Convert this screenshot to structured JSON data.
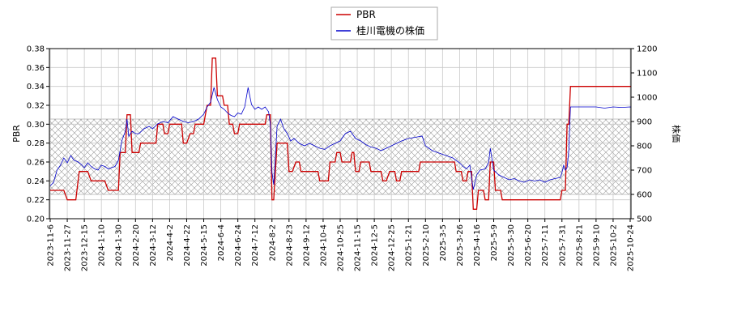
{
  "chart_data": {
    "type": "line",
    "title": "",
    "legend": {
      "placement": "top-center",
      "entries": [
        {
          "name": "PBR",
          "color": "#cc0000"
        },
        {
          "name": "桂川電機の株価",
          "color": "#0000cc"
        }
      ]
    },
    "xlabel": "",
    "x_ticks": [
      "2023-11-6",
      "2023-11-27",
      "2023-12-15",
      "2024-1-10",
      "2024-1-30",
      "2024-2-20",
      "2024-3-12",
      "2024-4-2",
      "2024-4-22",
      "2024-5-15",
      "2024-6-4",
      "2024-6-24",
      "2024-7-12",
      "2024-8-2",
      "2024-8-23",
      "2024-9-12",
      "2024-10-4",
      "2024-10-25",
      "2024-11-15",
      "2024-12-5",
      "2024-12-25",
      "2025-1-21",
      "2025-2-10",
      "2025-3-5",
      "2025-3-26",
      "2025-4-16",
      "2025-5-9",
      "2025-5-30",
      "2025-6-20",
      "2025-7-11",
      "2025-7-31",
      "2025-8-21",
      "2025-9-10",
      "2025-10-2",
      "2025-10-24"
    ],
    "y_left": {
      "label": "PBR",
      "lim": [
        0.2,
        0.38
      ],
      "ticks": [
        "0.20",
        "0.22",
        "0.24",
        "0.26",
        "0.28",
        "0.30",
        "0.32",
        "0.34",
        "0.36",
        "0.38"
      ]
    },
    "y_right": {
      "label": "株価",
      "lim": [
        500,
        1200
      ],
      "ticks": [
        "500",
        "600",
        "700",
        "800",
        "900",
        "1000",
        "1100",
        "1200"
      ]
    },
    "hatch_band": {
      "axis": "right",
      "from": 600,
      "to": 910
    },
    "grid": true,
    "series": [
      {
        "name": "PBR",
        "axis": "left",
        "color": "#cc0000",
        "points": [
          [
            0,
            0.23
          ],
          [
            0.8,
            0.23
          ],
          [
            1,
            0.22
          ],
          [
            1.5,
            0.22
          ],
          [
            1.7,
            0.25
          ],
          [
            2.2,
            0.25
          ],
          [
            2.4,
            0.24
          ],
          [
            3.2,
            0.24
          ],
          [
            3.4,
            0.23
          ],
          [
            4,
            0.23
          ],
          [
            4.1,
            0.27
          ],
          [
            4.4,
            0.27
          ],
          [
            4.5,
            0.31
          ],
          [
            4.7,
            0.31
          ],
          [
            4.8,
            0.27
          ],
          [
            5.2,
            0.27
          ],
          [
            5.3,
            0.28
          ],
          [
            6.2,
            0.28
          ],
          [
            6.3,
            0.3
          ],
          [
            6.6,
            0.3
          ],
          [
            6.7,
            0.29
          ],
          [
            6.9,
            0.29
          ],
          [
            7,
            0.3
          ],
          [
            7.7,
            0.3
          ],
          [
            7.8,
            0.28
          ],
          [
            8,
            0.28
          ],
          [
            8.2,
            0.29
          ],
          [
            8.4,
            0.29
          ],
          [
            8.5,
            0.3
          ],
          [
            9,
            0.3
          ],
          [
            9.2,
            0.32
          ],
          [
            9.4,
            0.32
          ],
          [
            9.5,
            0.37
          ],
          [
            9.7,
            0.37
          ],
          [
            9.8,
            0.33
          ],
          [
            10.1,
            0.33
          ],
          [
            10.2,
            0.32
          ],
          [
            10.4,
            0.32
          ],
          [
            10.5,
            0.3
          ],
          [
            10.7,
            0.3
          ],
          [
            10.8,
            0.29
          ],
          [
            11,
            0.29
          ],
          [
            11.1,
            0.3
          ],
          [
            12.6,
            0.3
          ],
          [
            12.7,
            0.31
          ],
          [
            12.9,
            0.31
          ],
          [
            13,
            0.22
          ],
          [
            13.1,
            0.22
          ],
          [
            13.3,
            0.28
          ],
          [
            13.9,
            0.28
          ],
          [
            14,
            0.25
          ],
          [
            14.2,
            0.25
          ],
          [
            14.4,
            0.26
          ],
          [
            14.6,
            0.26
          ],
          [
            14.7,
            0.25
          ],
          [
            15.7,
            0.25
          ],
          [
            15.8,
            0.24
          ],
          [
            16.3,
            0.24
          ],
          [
            16.4,
            0.26
          ],
          [
            16.7,
            0.26
          ],
          [
            16.8,
            0.27
          ],
          [
            17,
            0.27
          ],
          [
            17.1,
            0.26
          ],
          [
            17.6,
            0.26
          ],
          [
            17.7,
            0.27
          ],
          [
            17.8,
            0.27
          ],
          [
            17.9,
            0.25
          ],
          [
            18.1,
            0.25
          ],
          [
            18.2,
            0.26
          ],
          [
            18.7,
            0.26
          ],
          [
            18.8,
            0.25
          ],
          [
            19.4,
            0.25
          ],
          [
            19.5,
            0.24
          ],
          [
            19.7,
            0.24
          ],
          [
            19.9,
            0.25
          ],
          [
            20.2,
            0.25
          ],
          [
            20.3,
            0.24
          ],
          [
            20.5,
            0.24
          ],
          [
            20.6,
            0.25
          ],
          [
            21.6,
            0.25
          ],
          [
            21.7,
            0.26
          ],
          [
            23.7,
            0.26
          ],
          [
            23.8,
            0.25
          ],
          [
            24.1,
            0.25
          ],
          [
            24.2,
            0.24
          ],
          [
            24.4,
            0.24
          ],
          [
            24.5,
            0.25
          ],
          [
            24.7,
            0.25
          ],
          [
            24.8,
            0.21
          ],
          [
            25,
            0.21
          ],
          [
            25.1,
            0.23
          ],
          [
            25.4,
            0.23
          ],
          [
            25.5,
            0.22
          ],
          [
            25.7,
            0.22
          ],
          [
            25.8,
            0.26
          ],
          [
            26,
            0.26
          ],
          [
            26.1,
            0.23
          ],
          [
            26.4,
            0.23
          ],
          [
            26.5,
            0.22
          ],
          [
            29.9,
            0.22
          ],
          [
            30,
            0.23
          ],
          [
            30.2,
            0.23
          ],
          [
            30.3,
            0.3
          ],
          [
            30.4,
            0.3
          ],
          [
            30.5,
            0.34
          ],
          [
            34.3,
            0.34
          ]
        ]
      },
      {
        "name": "桂川電機の株価",
        "axis": "right",
        "color": "#0000cc",
        "points": [
          [
            0,
            635
          ],
          [
            0.2,
            650
          ],
          [
            0.4,
            700
          ],
          [
            0.6,
            720
          ],
          [
            0.8,
            750
          ],
          [
            1,
            730
          ],
          [
            1.2,
            760
          ],
          [
            1.4,
            740
          ],
          [
            1.6,
            735
          ],
          [
            1.8,
            725
          ],
          [
            2,
            710
          ],
          [
            2.2,
            730
          ],
          [
            2.4,
            715
          ],
          [
            2.6,
            705
          ],
          [
            2.8,
            700
          ],
          [
            3,
            720
          ],
          [
            3.2,
            715
          ],
          [
            3.4,
            705
          ],
          [
            3.6,
            710
          ],
          [
            3.8,
            715
          ],
          [
            4,
            740
          ],
          [
            4.2,
            820
          ],
          [
            4.4,
            860
          ],
          [
            4.5,
            910
          ],
          [
            4.6,
            840
          ],
          [
            4.8,
            860
          ],
          [
            5,
            850
          ],
          [
            5.2,
            850
          ],
          [
            5.5,
            870
          ],
          [
            5.8,
            880
          ],
          [
            6,
            870
          ],
          [
            6.3,
            890
          ],
          [
            6.6,
            900
          ],
          [
            6.9,
            895
          ],
          [
            7.2,
            920
          ],
          [
            7.5,
            910
          ],
          [
            7.8,
            900
          ],
          [
            8.1,
            895
          ],
          [
            8.4,
            900
          ],
          [
            8.7,
            910
          ],
          [
            9,
            930
          ],
          [
            9.2,
            960
          ],
          [
            9.4,
            980
          ],
          [
            9.6,
            1040
          ],
          [
            9.8,
            990
          ],
          [
            10,
            960
          ],
          [
            10.2,
            950
          ],
          [
            10.4,
            935
          ],
          [
            10.6,
            925
          ],
          [
            10.8,
            920
          ],
          [
            11,
            935
          ],
          [
            11.2,
            930
          ],
          [
            11.4,
            960
          ],
          [
            11.6,
            1040
          ],
          [
            11.8,
            970
          ],
          [
            12,
            950
          ],
          [
            12.2,
            960
          ],
          [
            12.4,
            950
          ],
          [
            12.6,
            960
          ],
          [
            12.8,
            940
          ],
          [
            12.9,
            890
          ],
          [
            13,
            690
          ],
          [
            13.1,
            640
          ],
          [
            13.3,
            880
          ],
          [
            13.5,
            910
          ],
          [
            13.7,
            870
          ],
          [
            13.9,
            850
          ],
          [
            14.1,
            820
          ],
          [
            14.3,
            830
          ],
          [
            14.6,
            810
          ],
          [
            14.9,
            800
          ],
          [
            15.2,
            810
          ],
          [
            15.5,
            800
          ],
          [
            15.8,
            790
          ],
          [
            16.1,
            785
          ],
          [
            16.4,
            800
          ],
          [
            16.7,
            810
          ],
          [
            17,
            820
          ],
          [
            17.3,
            850
          ],
          [
            17.6,
            860
          ],
          [
            17.9,
            830
          ],
          [
            18.2,
            820
          ],
          [
            18.5,
            805
          ],
          [
            18.8,
            795
          ],
          [
            19.1,
            790
          ],
          [
            19.4,
            780
          ],
          [
            19.7,
            790
          ],
          [
            20,
            800
          ],
          [
            20.3,
            810
          ],
          [
            20.6,
            820
          ],
          [
            21,
            830
          ],
          [
            21.4,
            835
          ],
          [
            21.8,
            840
          ],
          [
            22,
            800
          ],
          [
            22.4,
            780
          ],
          [
            22.8,
            770
          ],
          [
            23.2,
            760
          ],
          [
            23.6,
            750
          ],
          [
            24,
            730
          ],
          [
            24.2,
            715
          ],
          [
            24.4,
            705
          ],
          [
            24.6,
            720
          ],
          [
            24.8,
            620
          ],
          [
            25,
            680
          ],
          [
            25.2,
            700
          ],
          [
            25.5,
            705
          ],
          [
            25.7,
            730
          ],
          [
            25.8,
            790
          ],
          [
            26,
            700
          ],
          [
            26.3,
            680
          ],
          [
            26.6,
            670
          ],
          [
            26.9,
            660
          ],
          [
            27.2,
            665
          ],
          [
            27.5,
            655
          ],
          [
            27.8,
            650
          ],
          [
            28.1,
            660
          ],
          [
            28.4,
            655
          ],
          [
            28.7,
            660
          ],
          [
            29,
            650
          ],
          [
            29.3,
            660
          ],
          [
            29.6,
            665
          ],
          [
            29.9,
            670
          ],
          [
            30,
            690
          ],
          [
            30.1,
            720
          ],
          [
            30.2,
            700
          ],
          [
            30.3,
            710
          ],
          [
            30.4,
            780
          ],
          [
            30.5,
            960
          ],
          [
            31,
            960
          ],
          [
            32,
            960
          ],
          [
            32.5,
            955
          ],
          [
            33,
            960
          ],
          [
            33.5,
            958
          ],
          [
            34,
            960
          ],
          [
            34.3,
            958
          ]
        ]
      }
    ]
  }
}
